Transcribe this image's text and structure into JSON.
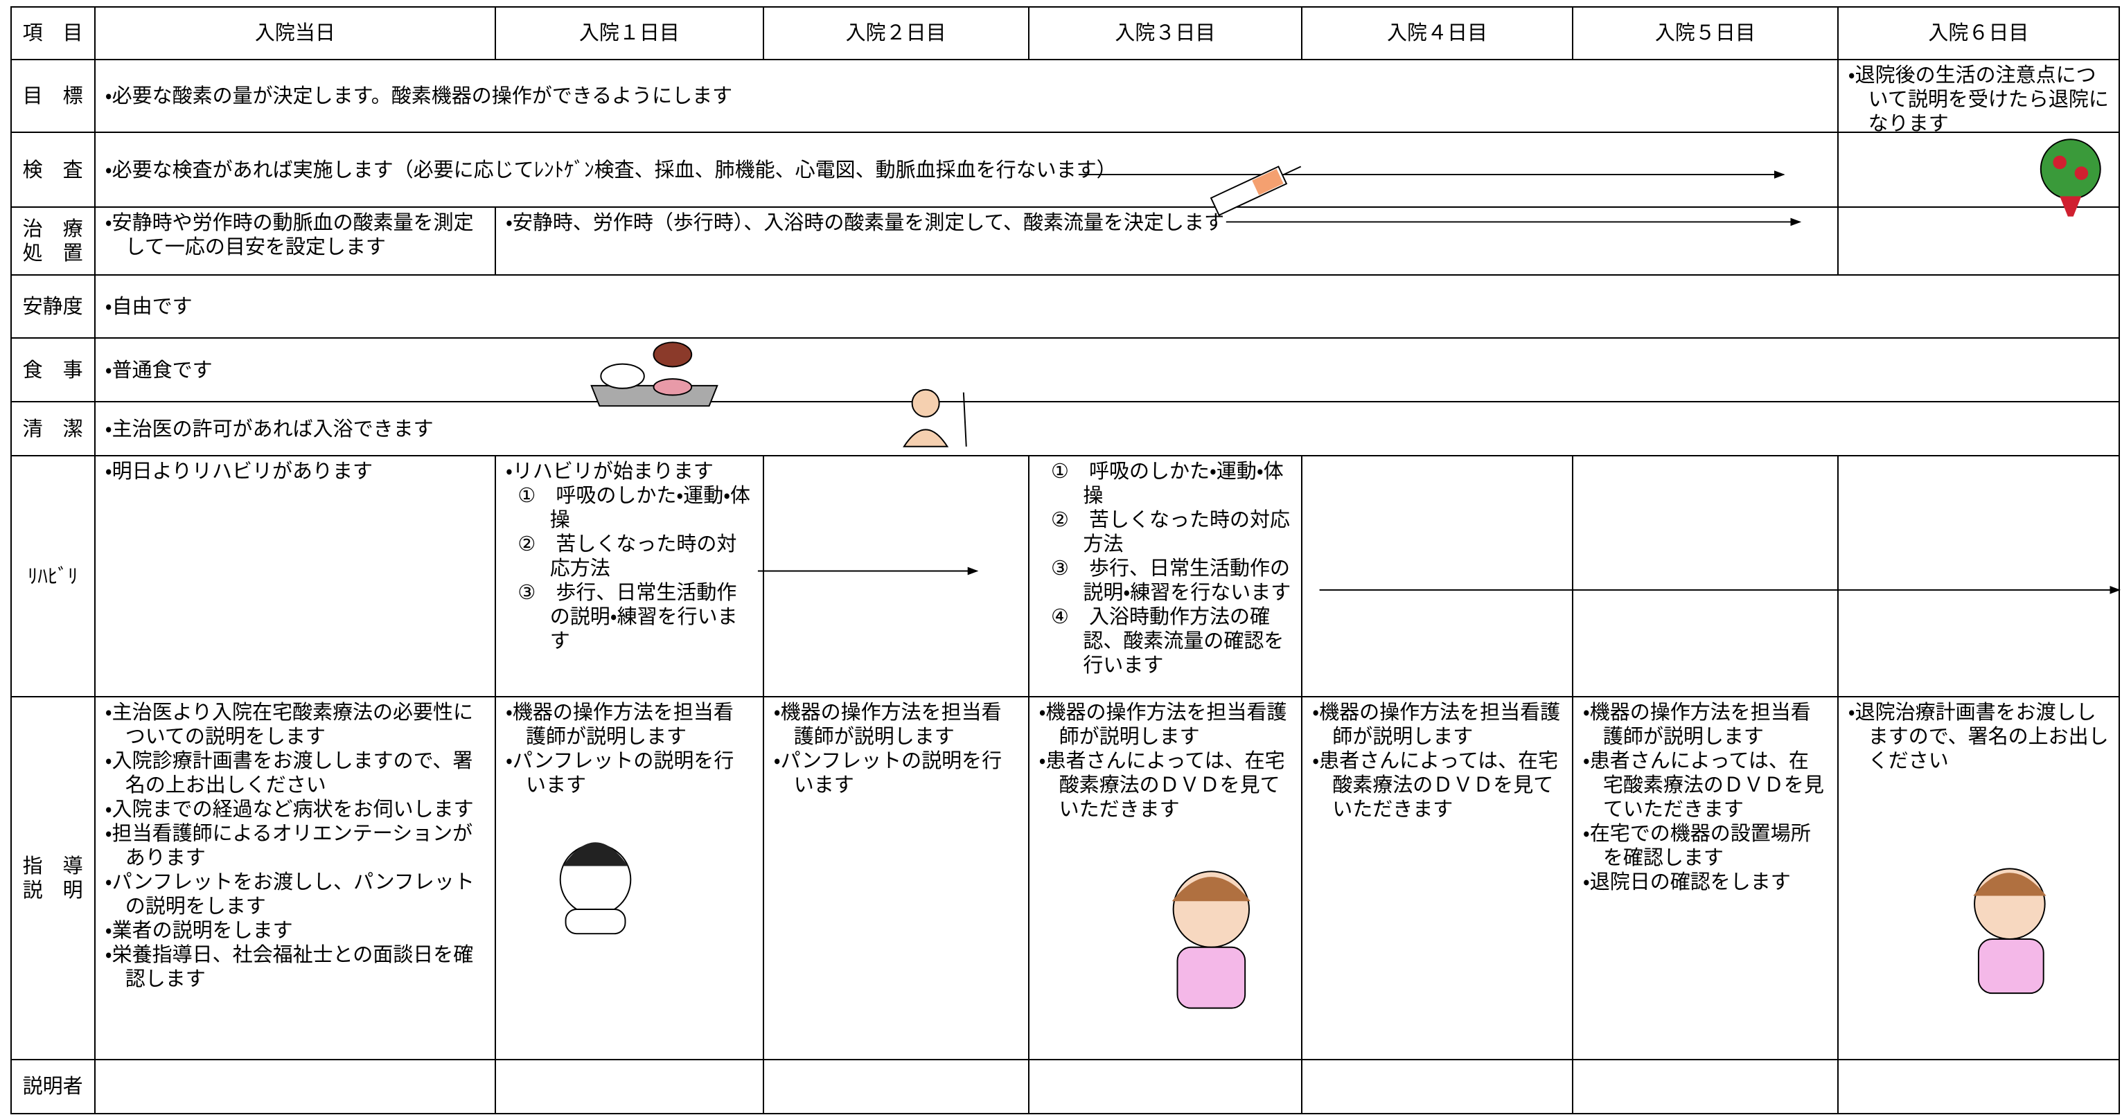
{
  "header": {
    "label": "項　目",
    "days": [
      "入院当日",
      "入院１日目",
      "入院２日目",
      "入院３日目",
      "入院４日目",
      "入院５日目",
      "入院６日目"
    ]
  },
  "rows": [
    {
      "label": [
        "目　標"
      ],
      "cells": [
        {
          "items": [
            "・必要な酸素の量が決定します。酸素機器の操作ができるようにします"
          ]
        },
        {
          "items": [
            "・退院後の生活の注意点について説明を受けたら退院になります"
          ]
        }
      ]
    },
    {
      "label": [
        "検　査"
      ],
      "cells": [
        {
          "items": [
            "・必要な検査があれば実施します（必要に応じてﾚﾝﾄｹﾞﾝ検査、採血、肺機能、心電図、動脈血採血を行ないます）"
          ]
        }
      ]
    },
    {
      "label": [
        "治　療",
        "処　置"
      ],
      "cells": [
        {
          "items": [
            "・安静時や労作時の動脈血の酸素量を測定して一応の目安を設定します"
          ]
        },
        {
          "items": [
            "・安静時、労作時（歩行時）、入浴時の酸素量を測定して、酸素流量を決定します"
          ]
        }
      ]
    },
    {
      "label": [
        "安静度"
      ],
      "cells": [
        {
          "items": [
            "・自由です"
          ]
        }
      ]
    },
    {
      "label": [
        "食　事"
      ],
      "cells": [
        {
          "items": [
            "・普通食です"
          ]
        }
      ]
    },
    {
      "label": [
        "清　潔"
      ],
      "cells": [
        {
          "items": [
            "・主治医の許可があれば入浴できます"
          ]
        }
      ]
    },
    {
      "label": [
        "ﾘﾊﾋﾞﾘ"
      ],
      "cells": [
        {
          "items": [
            "・明日よりリハビリがあります"
          ]
        },
        {
          "items": [
            "・リハビリが始まります",
            "①　呼吸のしかた・運動・体操",
            "②　苦しくなった時の対応方法",
            "③　歩行、日常生活動作の説明・練習を行います"
          ]
        },
        {
          "items": [
            "①　呼吸のしかた・運動・体操",
            "②　苦しくなった時の対応方法",
            "③　歩行、日常生活動作の説明・練習を行ないます",
            "④　入浴時動作方法の確認、酸素流量の確認を行います"
          ]
        }
      ]
    },
    {
      "label": [
        "指　導",
        "説　明"
      ],
      "cells": [
        {
          "items": [
            "・主治医より入院在宅酸素療法の必要性についての説明をします",
            "・入院診療計画書をお渡ししますので、署名の上お出しください",
            "・入院までの経過など病状をお伺いします",
            "・担当看護師によるオリエンテーションがあります",
            "・パンフレットをお渡しし、パンフレットの説明をします",
            "・業者の説明をします",
            "・栄養指導日、社会福祉士との面談日を確認します"
          ]
        },
        {
          "items": [
            "・機器の操作方法を担当看護師が説明します",
            "・パンフレットの説明を行います"
          ]
        },
        {
          "items": [
            "・機器の操作方法を担当看護師が説明します",
            "・パンフレットの説明を行います"
          ]
        },
        {
          "items": [
            "・機器の操作方法を担当看護師が説明します",
            "・患者さんによっては、在宅酸素療法のＤＶＤを見ていただきます"
          ]
        },
        {
          "items": [
            "・機器の操作方法を担当看護師が説明します",
            "・患者さんによっては、在宅酸素療法のＤＶＤを見ていただきます"
          ]
        },
        {
          "items": [
            "・機器の操作方法を担当看護師が説明します",
            "・患者さんによっては、在宅酸素療法のＤＶＤを見ていただきます",
            "・在宅での機器の設置場所を確認します",
            "・退院日の確認をします"
          ]
        },
        {
          "items": [
            "・退院治療計画書をお渡ししますので、署名の上お出しください"
          ]
        }
      ]
    },
    {
      "label": [
        "説明者"
      ],
      "cells": []
    }
  ]
}
